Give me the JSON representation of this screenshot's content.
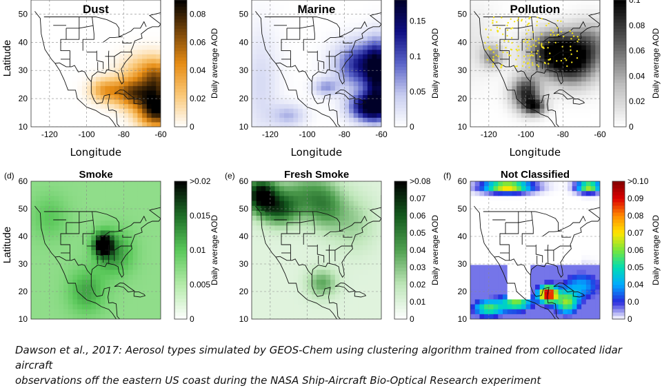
{
  "caption": {
    "line1": "Dawson et al., 2017: Aerosol types simulated by GEOS-Chem using clustering algorithm trained from collocated lidar aircraft",
    "line2": "observations off the eastern US coast during the NASA Ship-Aircraft Bio-Optical Research experiment"
  },
  "colors": {
    "dust": "#d9860c",
    "marine": "#0a0a7a",
    "pollution": "#000000",
    "smoke": "#1d6b1d",
    "fresh_smoke": "#145214",
    "not_classified": "rainbow"
  },
  "chart_data": [
    {
      "type": "heatmap",
      "tag": "",
      "title": "Dust",
      "xlabel": "Longitude",
      "ylabel": "Latitude",
      "colorbar_label": "Daily average AOD",
      "xticks": [
        "-120",
        "-100",
        "-80",
        "-60"
      ],
      "yticks": [
        "10",
        "20",
        "30",
        "40",
        "50"
      ],
      "cbar_ticks": [
        "0",
        "0.02",
        "0.04",
        "0.06",
        "0.08"
      ],
      "xlim": [
        -130,
        -60
      ],
      "ylim": [
        10,
        55
      ],
      "cbar_range": [
        0,
        0.09
      ],
      "palette": "dust"
    },
    {
      "type": "heatmap",
      "tag": "",
      "title": "Marine",
      "xlabel": "Longitude",
      "ylabel": "",
      "colorbar_label": "Daily average AOD",
      "xticks": [
        "-120",
        "-100",
        "-80",
        "-60"
      ],
      "yticks": [
        "10",
        "20",
        "30",
        "40",
        "50"
      ],
      "cbar_ticks": [
        "0",
        "0.05",
        "0.1",
        "0.15"
      ],
      "xlim": [
        -130,
        -60
      ],
      "ylim": [
        10,
        55
      ],
      "cbar_range": [
        0,
        0.18
      ],
      "palette": "marine"
    },
    {
      "type": "heatmap",
      "tag": "",
      "title": "Pollution",
      "xlabel": "Longitude",
      "ylabel": "",
      "colorbar_label": "Daily average AOD",
      "xticks": [
        "-120",
        "-100",
        "-80",
        "-60"
      ],
      "yticks": [
        "10",
        "20",
        "30",
        "40",
        "50"
      ],
      "cbar_ticks": [
        "0",
        "0.02",
        "0.04",
        "0.06",
        "0.08",
        "0.1"
      ],
      "xlim": [
        -130,
        -60
      ],
      "ylim": [
        10,
        55
      ],
      "cbar_range": [
        0,
        0.1
      ],
      "palette": "pollution"
    },
    {
      "type": "heatmap",
      "tag": "(d)",
      "title": "Smoke",
      "xlabel": "",
      "ylabel": "Latitude",
      "colorbar_label": "Daily average AOD",
      "xticks": [],
      "yticks": [
        "10",
        "20",
        "30",
        "40",
        "50",
        "60"
      ],
      "cbar_ticks": [
        "0",
        "0.005",
        "0.01",
        "0.015",
        ">0.02"
      ],
      "xlim": [
        -130,
        -60
      ],
      "ylim": [
        10,
        60
      ],
      "cbar_range": [
        0,
        0.02
      ],
      "palette": "smoke"
    },
    {
      "type": "heatmap",
      "tag": "(e)",
      "title": "Fresh Smoke",
      "xlabel": "",
      "ylabel": "",
      "colorbar_label": "Daily average AOD",
      "xticks": [],
      "yticks": [
        "10",
        "20",
        "30",
        "40",
        "50",
        "60"
      ],
      "cbar_ticks": [
        "0",
        "0.01",
        "0.02",
        "0.03",
        "0.04",
        "0.05",
        "0.06",
        "0.07",
        ">0.08"
      ],
      "xlim": [
        -130,
        -60
      ],
      "ylim": [
        10,
        60
      ],
      "cbar_range": [
        0,
        0.08
      ],
      "palette": "fresh_smoke"
    },
    {
      "type": "heatmap",
      "tag": "(f)",
      "title": "Not Classified",
      "xlabel": "",
      "ylabel": "",
      "colorbar_label": "Daily average AOD",
      "xticks": [],
      "yticks": [
        "10",
        "20",
        "30",
        "40",
        "50",
        "60"
      ],
      "cbar_ticks": [
        "0",
        "0.0",
        "0.04",
        "0.05",
        "0.06",
        "0.07",
        "0.08",
        "0.09",
        ">0.10"
      ],
      "xlim": [
        -130,
        -60
      ],
      "ylim": [
        10,
        60
      ],
      "cbar_range": [
        0,
        0.1
      ],
      "palette": "rainbow"
    }
  ]
}
